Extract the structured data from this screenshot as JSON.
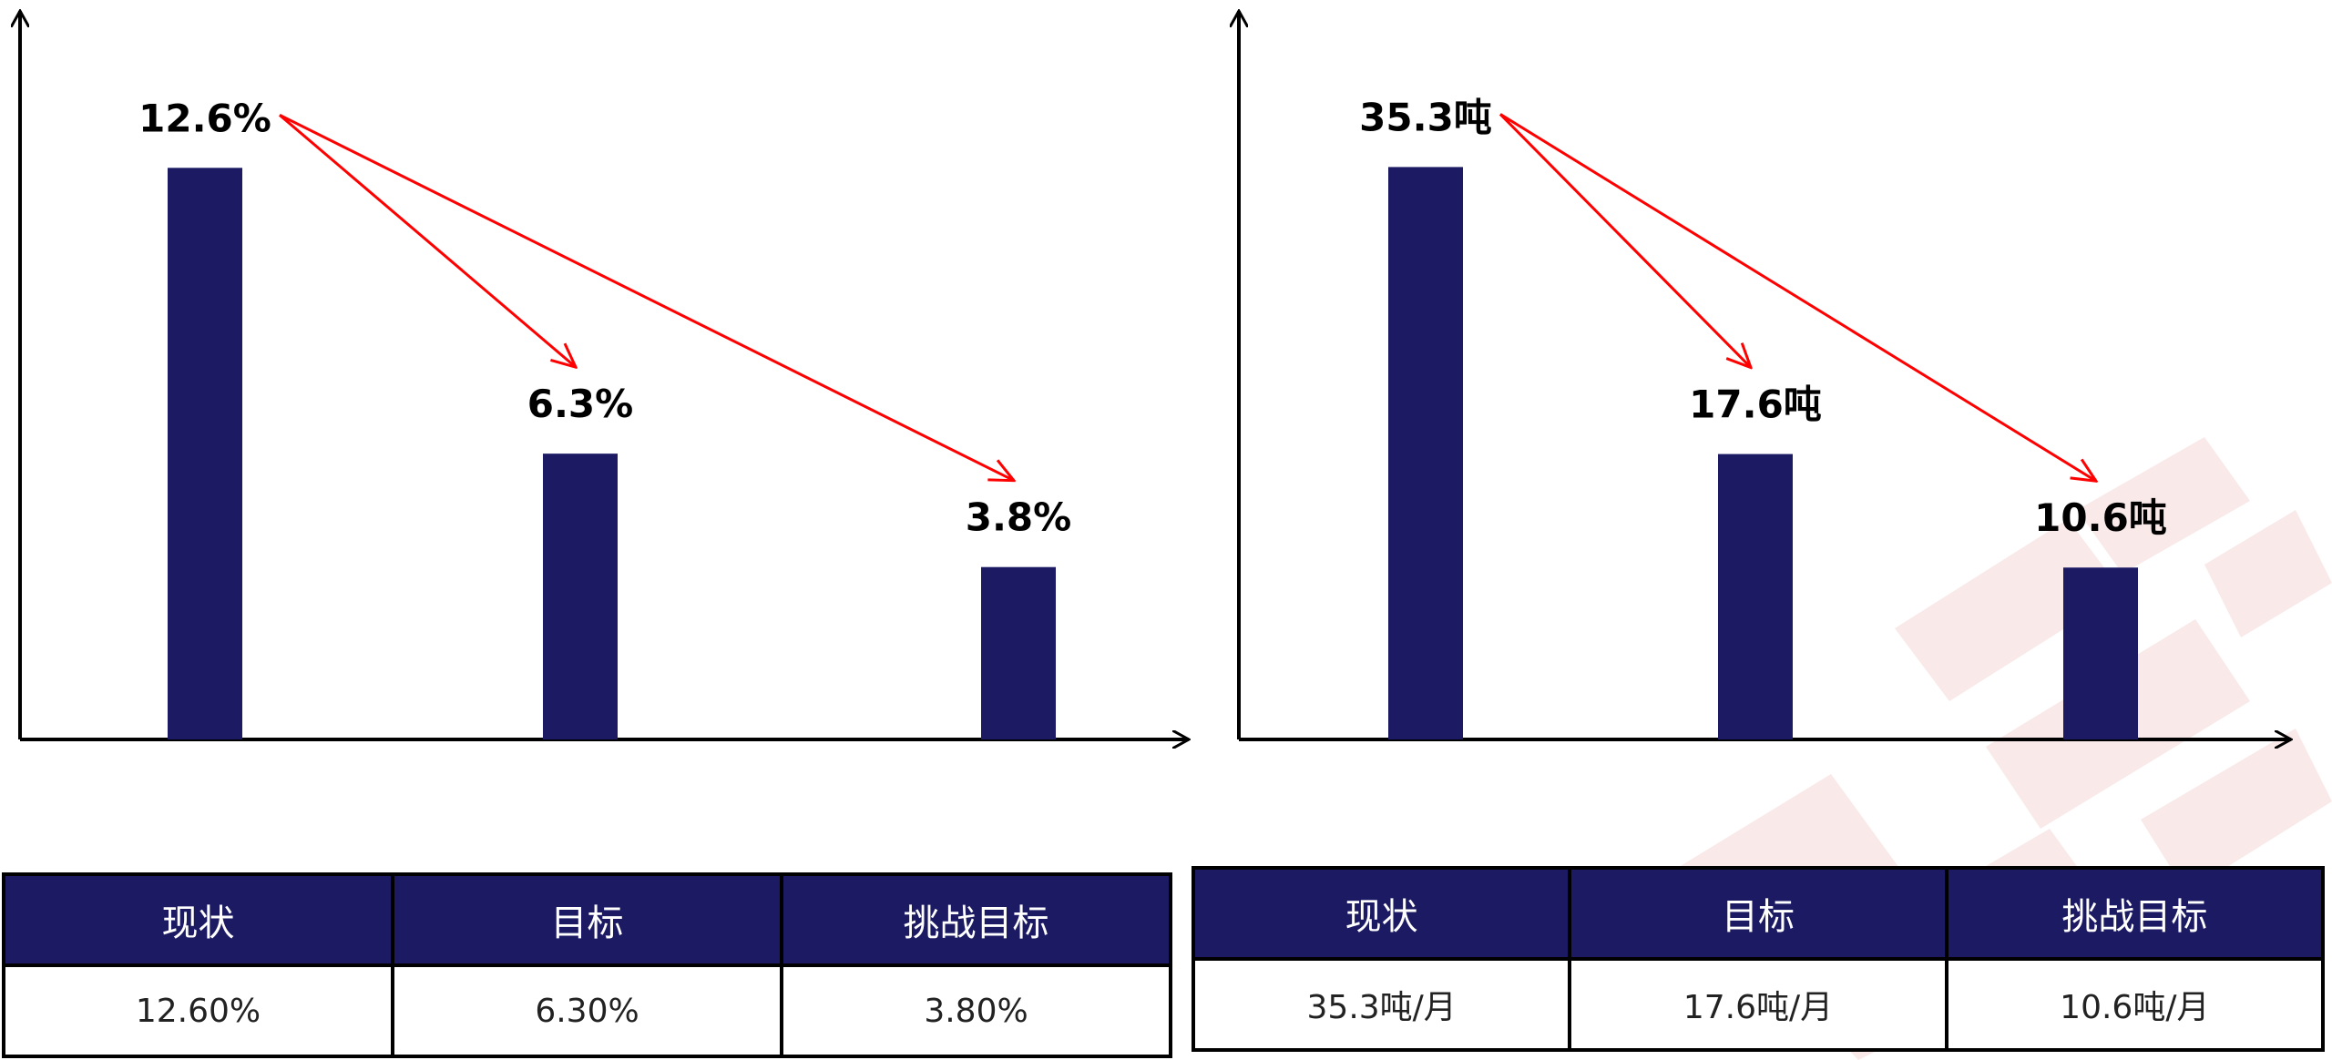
{
  "chart_data": [
    {
      "type": "bar",
      "categories": [
        "现状",
        "目标",
        "挑战目标"
      ],
      "values": [
        12.6,
        6.3,
        3.8
      ],
      "data_labels": [
        "12.6%",
        "6.3%",
        "3.8%"
      ],
      "ylim": [
        0,
        16.3
      ],
      "grid": false,
      "bar_color": "#1b1a63",
      "arrow_color": "#ff0000",
      "annotations": "red arrows from first bar label to second and third bar labels"
    },
    {
      "type": "bar",
      "categories": [
        "现状",
        "目标",
        "挑战目标"
      ],
      "values": [
        35.3,
        17.6,
        10.6
      ],
      "data_labels": [
        "35.3吨",
        "17.6吨",
        "10.6吨"
      ],
      "ylim": [
        0,
        45.6
      ],
      "grid": false,
      "bar_color": "#1b1a63",
      "arrow_color": "#ff0000",
      "annotations": "red arrows from first bar label to second and third bar labels"
    }
  ],
  "tables": [
    {
      "headers": [
        "现状",
        "目标",
        "挑战目标"
      ],
      "values": [
        "12.60%",
        "6.30%",
        "3.80%"
      ]
    },
    {
      "headers": [
        "现状",
        "目标",
        "挑战目标"
      ],
      "values": [
        "35.3吨/月",
        "17.6吨/月",
        "10.6吨/月"
      ]
    }
  ],
  "colors": {
    "header_bg": "#1b1a63",
    "bar": "#1b1a63",
    "arrow": "#ff0000",
    "watermark": "#f6dcdc"
  }
}
